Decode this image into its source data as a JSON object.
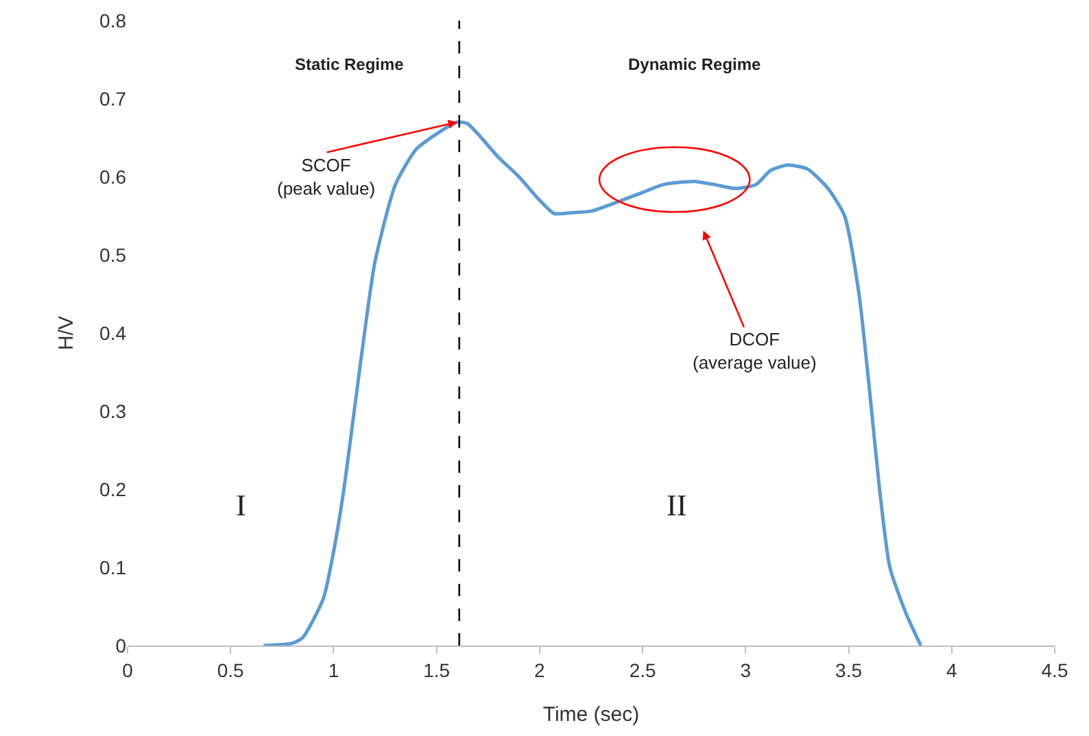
{
  "chart_data": {
    "type": "line",
    "xlabel": "Time (sec)",
    "ylabel": "H/V",
    "x": [
      0.66,
      0.8,
      0.85,
      0.95,
      1.0,
      1.05,
      1.1,
      1.15,
      1.2,
      1.3,
      1.4,
      1.5,
      1.6,
      1.65,
      1.7,
      1.8,
      1.9,
      2.0,
      2.07,
      2.15,
      2.25,
      2.35,
      2.5,
      2.6,
      2.75,
      2.85,
      2.95,
      3.05,
      3.12,
      3.2,
      3.3,
      3.4,
      3.48,
      3.55,
      3.6,
      3.65,
      3.7,
      3.78,
      3.85
    ],
    "series": [
      {
        "color": "#5b9bd5",
        "values": [
          0,
          0.003,
          0.01,
          0.06,
          0.12,
          0.2,
          0.3,
          0.4,
          0.49,
          0.59,
          0.635,
          0.655,
          0.67,
          0.668,
          0.655,
          0.625,
          0.6,
          0.57,
          0.553,
          0.554,
          0.556,
          0.565,
          0.58,
          0.59,
          0.594,
          0.59,
          0.585,
          0.59,
          0.608,
          0.615,
          0.61,
          0.585,
          0.55,
          0.45,
          0.33,
          0.2,
          0.1,
          0.04,
          0
        ]
      }
    ],
    "xlim": [
      0,
      4.5
    ],
    "xticks": [
      0,
      0.5,
      1,
      1.5,
      2,
      2.5,
      3,
      3.5,
      4,
      4.5
    ],
    "ylim": [
      0,
      0.8
    ],
    "yticks": [
      0,
      0.1,
      0.2,
      0.3,
      0.4,
      0.5,
      0.6,
      0.7,
      0.8
    ],
    "grid": false,
    "marker": "none",
    "line_style": "solid",
    "ref_lines": [
      {
        "axis": "x",
        "value": 1.61,
        "color": "#000000",
        "line_style": "dashed"
      }
    ],
    "annotations": [
      "Static Regime",
      "Dynamic Regime",
      {
        "text": "SCOF\n(peak value)",
        "x": 1.6,
        "y": 0.67
      },
      "DCOF\n(average value)",
      "I",
      "II"
    ]
  }
}
